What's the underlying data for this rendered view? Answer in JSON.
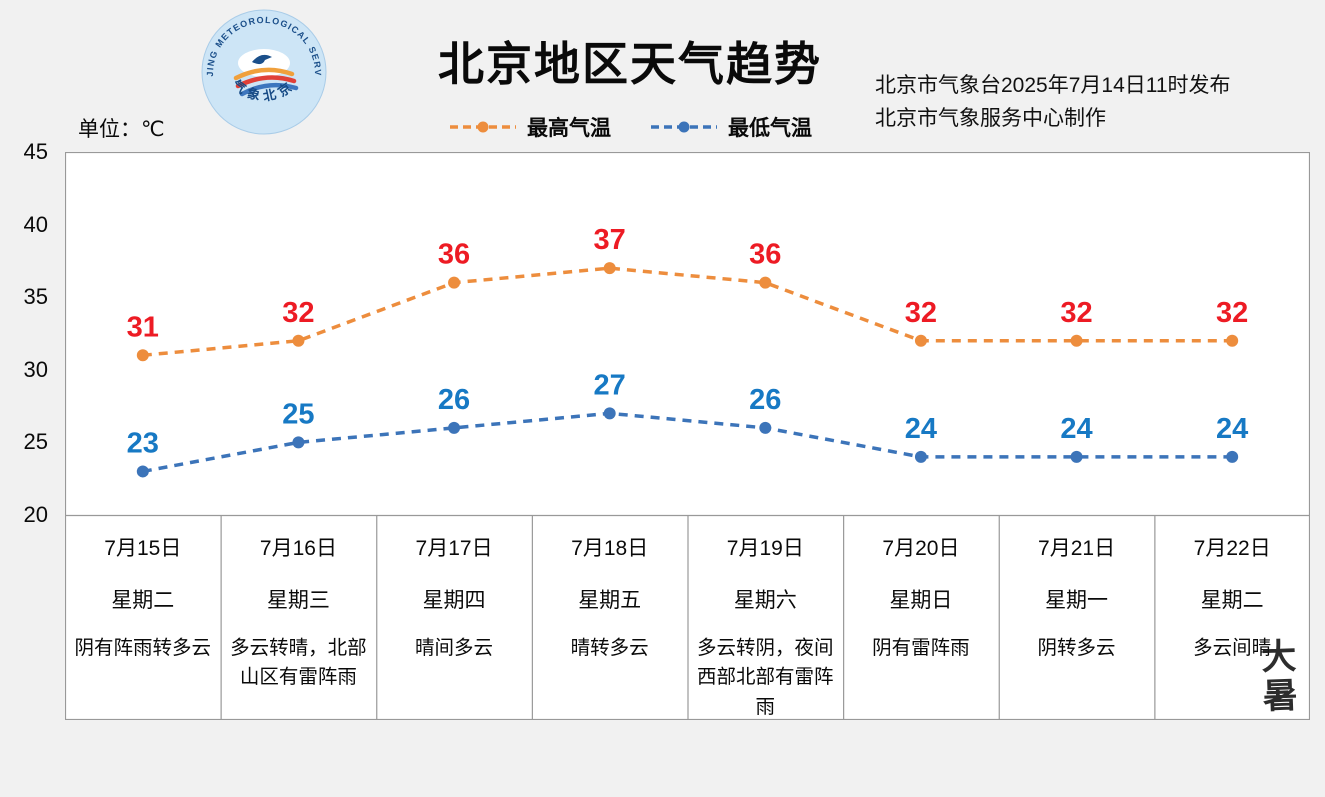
{
  "header": {
    "title": "北京地区天气趋势",
    "issue_line1": "北京市气象台2025年7月14日11时发布",
    "issue_line2": "北京市气象服务中心制作",
    "logo_top_text": "BEIJING METEOROLOGICAL SERVICE",
    "logo_bottom_text": "气象北京"
  },
  "unit_label": "单位：℃",
  "legend": {
    "high_label": "最高气温",
    "low_label": "最低气温"
  },
  "seal_text": "大暑",
  "colors": {
    "high_line": "#ED8D3D",
    "low_line": "#3C74B9",
    "high_value": "#ED1B24",
    "low_value": "#1779C4",
    "background": "#F1F1F1",
    "grid": "#999999"
  },
  "chart_data": {
    "type": "line",
    "title": "北京地区天气趋势",
    "xlabel": "",
    "ylabel": "℃",
    "ylim": [
      20,
      45
    ],
    "yticks": [
      45,
      40,
      35,
      30,
      25,
      20
    ],
    "grid": false,
    "legend_position": "top",
    "categories": [
      "7月15日",
      "7月16日",
      "7月17日",
      "7月18日",
      "7月19日",
      "7月20日",
      "7月21日",
      "7月22日"
    ],
    "weekdays": [
      "星期二",
      "星期三",
      "星期四",
      "星期五",
      "星期六",
      "星期日",
      "星期一",
      "星期二"
    ],
    "descriptions": [
      "阴有阵雨转多云",
      "多云转晴，北部山区有雷阵雨",
      "晴间多云",
      "晴转多云",
      "多云转阴，夜间西部北部有雷阵雨",
      "阴有雷阵雨",
      "阴转多云",
      "多云间晴"
    ],
    "series": [
      {
        "name": "最高气温",
        "values": [
          31,
          32,
          36,
          37,
          36,
          32,
          32,
          32
        ]
      },
      {
        "name": "最低气温",
        "values": [
          23,
          25,
          26,
          27,
          26,
          24,
          24,
          24
        ]
      }
    ]
  }
}
